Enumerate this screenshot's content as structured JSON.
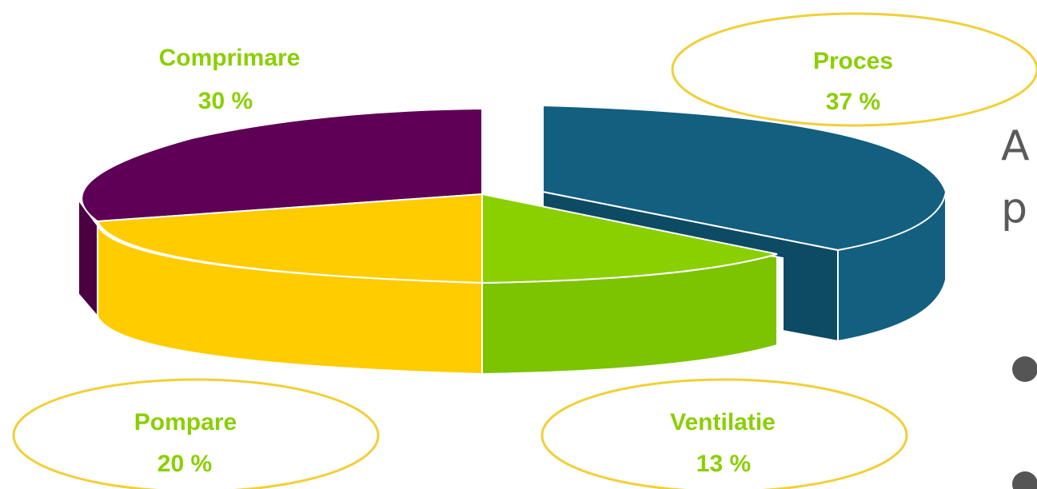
{
  "chart_data": {
    "type": "pie",
    "style": "3d-exploded",
    "slices": [
      {
        "label": "Proces",
        "value": 37,
        "value_text": "37 %",
        "color": "#125f80",
        "side_color": "#0d4a64",
        "label_color": "#8acf00",
        "highlighted": true
      },
      {
        "label": "Ventilatie",
        "value": 13,
        "value_text": "13 %",
        "color": "#8acf00",
        "side_color": "#7cc300",
        "label_color": "#8acf00",
        "highlighted": true
      },
      {
        "label": "Pompare",
        "value": 20,
        "value_text": "20 %",
        "color": "#ffcc00",
        "side_color": "#ffcc00",
        "label_color": "#8acf00",
        "highlighted": true
      },
      {
        "label": "Comprimare",
        "value": 30,
        "value_text": "30 %",
        "color": "#5e0055",
        "side_color": "#4a0043",
        "label_color": "#8acf00",
        "highlighted": false
      }
    ],
    "highlight_color": "#f2cf37"
  },
  "side_text": {
    "line1": "A",
    "line2": "p",
    "bullet_color": "#555555"
  }
}
